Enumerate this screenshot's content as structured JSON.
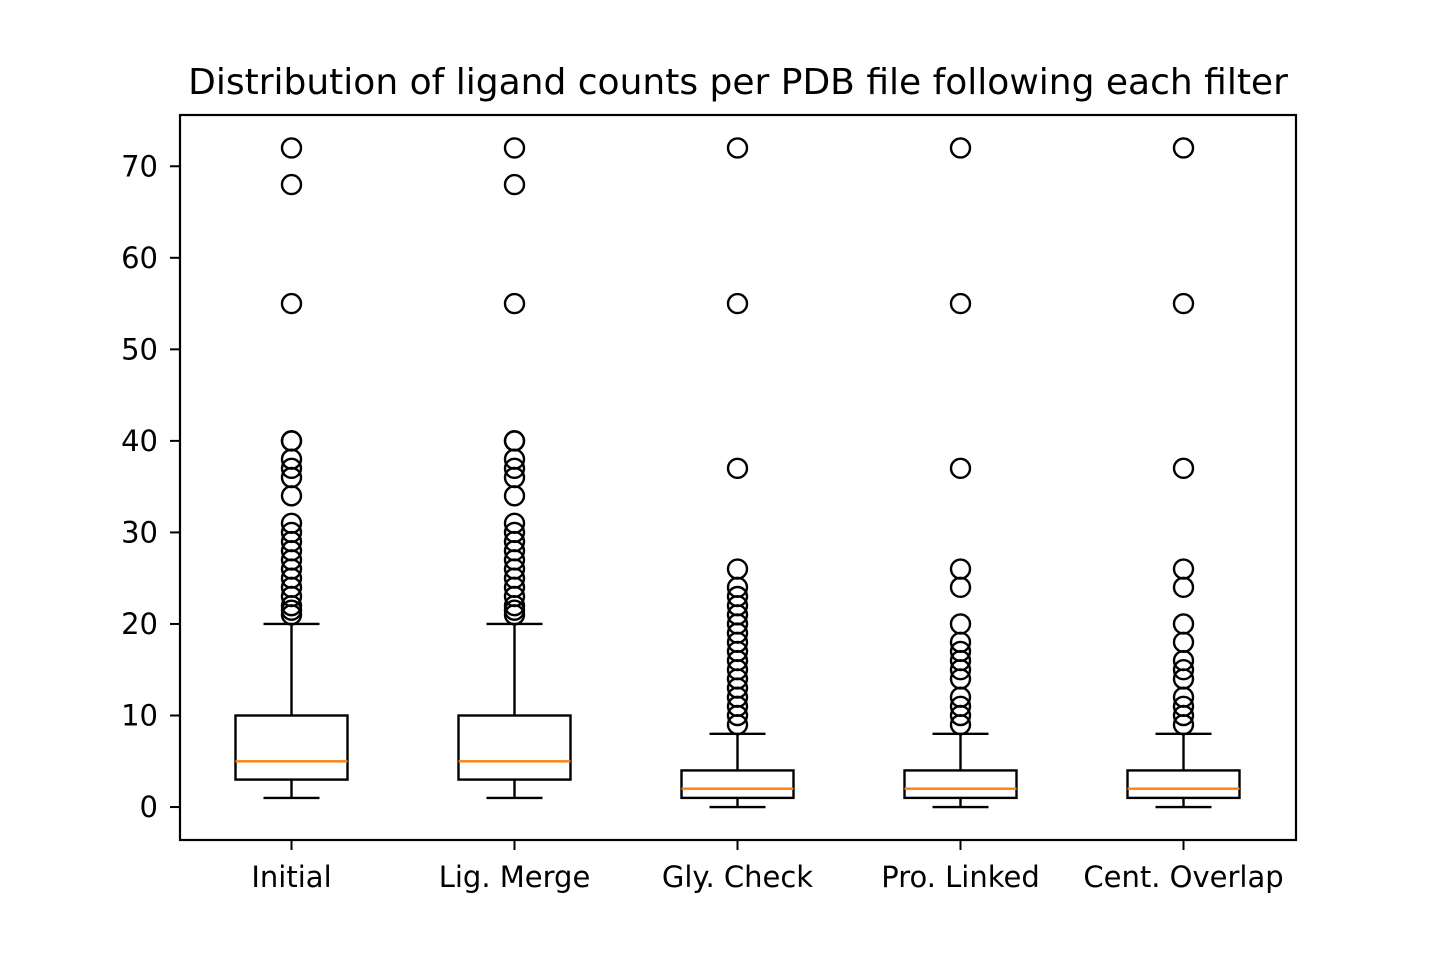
{
  "chart_data": {
    "type": "box",
    "title": "Distribution of ligand counts per PDB file following each filter",
    "xlabel": "",
    "ylabel": "",
    "categories": [
      "Initial",
      "Lig. Merge",
      "Gly. Check",
      "Pro. Linked",
      "Cent. Overlap"
    ],
    "ylim": [
      -3.6,
      75.6
    ],
    "yticks": [
      0,
      10,
      20,
      30,
      40,
      50,
      60,
      70
    ],
    "grid": false,
    "legend": "none",
    "colors": {
      "box": "#000000",
      "median": "#ff7f0e",
      "flier": "#000000",
      "background": "#ffffff"
    },
    "boxes": [
      {
        "category": "Initial",
        "whisker_low": 1,
        "q1": 3,
        "median": 5,
        "q3": 10,
        "whisker_high": 20,
        "outliers": [
          21,
          21.5,
          22,
          23,
          24,
          25,
          26,
          27,
          28,
          29,
          30,
          31,
          34,
          36,
          37,
          38,
          40,
          40,
          55,
          68,
          72
        ]
      },
      {
        "category": "Lig. Merge",
        "whisker_low": 1,
        "q1": 3,
        "median": 5,
        "q3": 10,
        "whisker_high": 20,
        "outliers": [
          21,
          21.5,
          22,
          23,
          24,
          25,
          26,
          27,
          28,
          29,
          30,
          31,
          34,
          36,
          37,
          38,
          40,
          40,
          55,
          68,
          72
        ]
      },
      {
        "category": "Gly. Check",
        "whisker_low": 0,
        "q1": 1,
        "median": 2,
        "q3": 4,
        "whisker_high": 8,
        "outliers": [
          9,
          10,
          11,
          12,
          13,
          14,
          15,
          16,
          17,
          18,
          19,
          20,
          21,
          22,
          23,
          24,
          26,
          37,
          55,
          72
        ]
      },
      {
        "category": "Pro. Linked",
        "whisker_low": 0,
        "q1": 1,
        "median": 2,
        "q3": 4,
        "whisker_high": 8,
        "outliers": [
          9,
          10,
          11,
          12,
          14,
          15,
          16,
          17,
          18,
          20,
          24,
          26,
          37,
          55,
          72
        ]
      },
      {
        "category": "Cent. Overlap",
        "whisker_low": 0,
        "q1": 1,
        "median": 2,
        "q3": 4,
        "whisker_high": 8,
        "outliers": [
          9,
          10,
          11,
          12,
          14,
          15,
          16,
          18,
          20,
          24,
          26,
          37,
          55,
          72
        ]
      }
    ]
  }
}
